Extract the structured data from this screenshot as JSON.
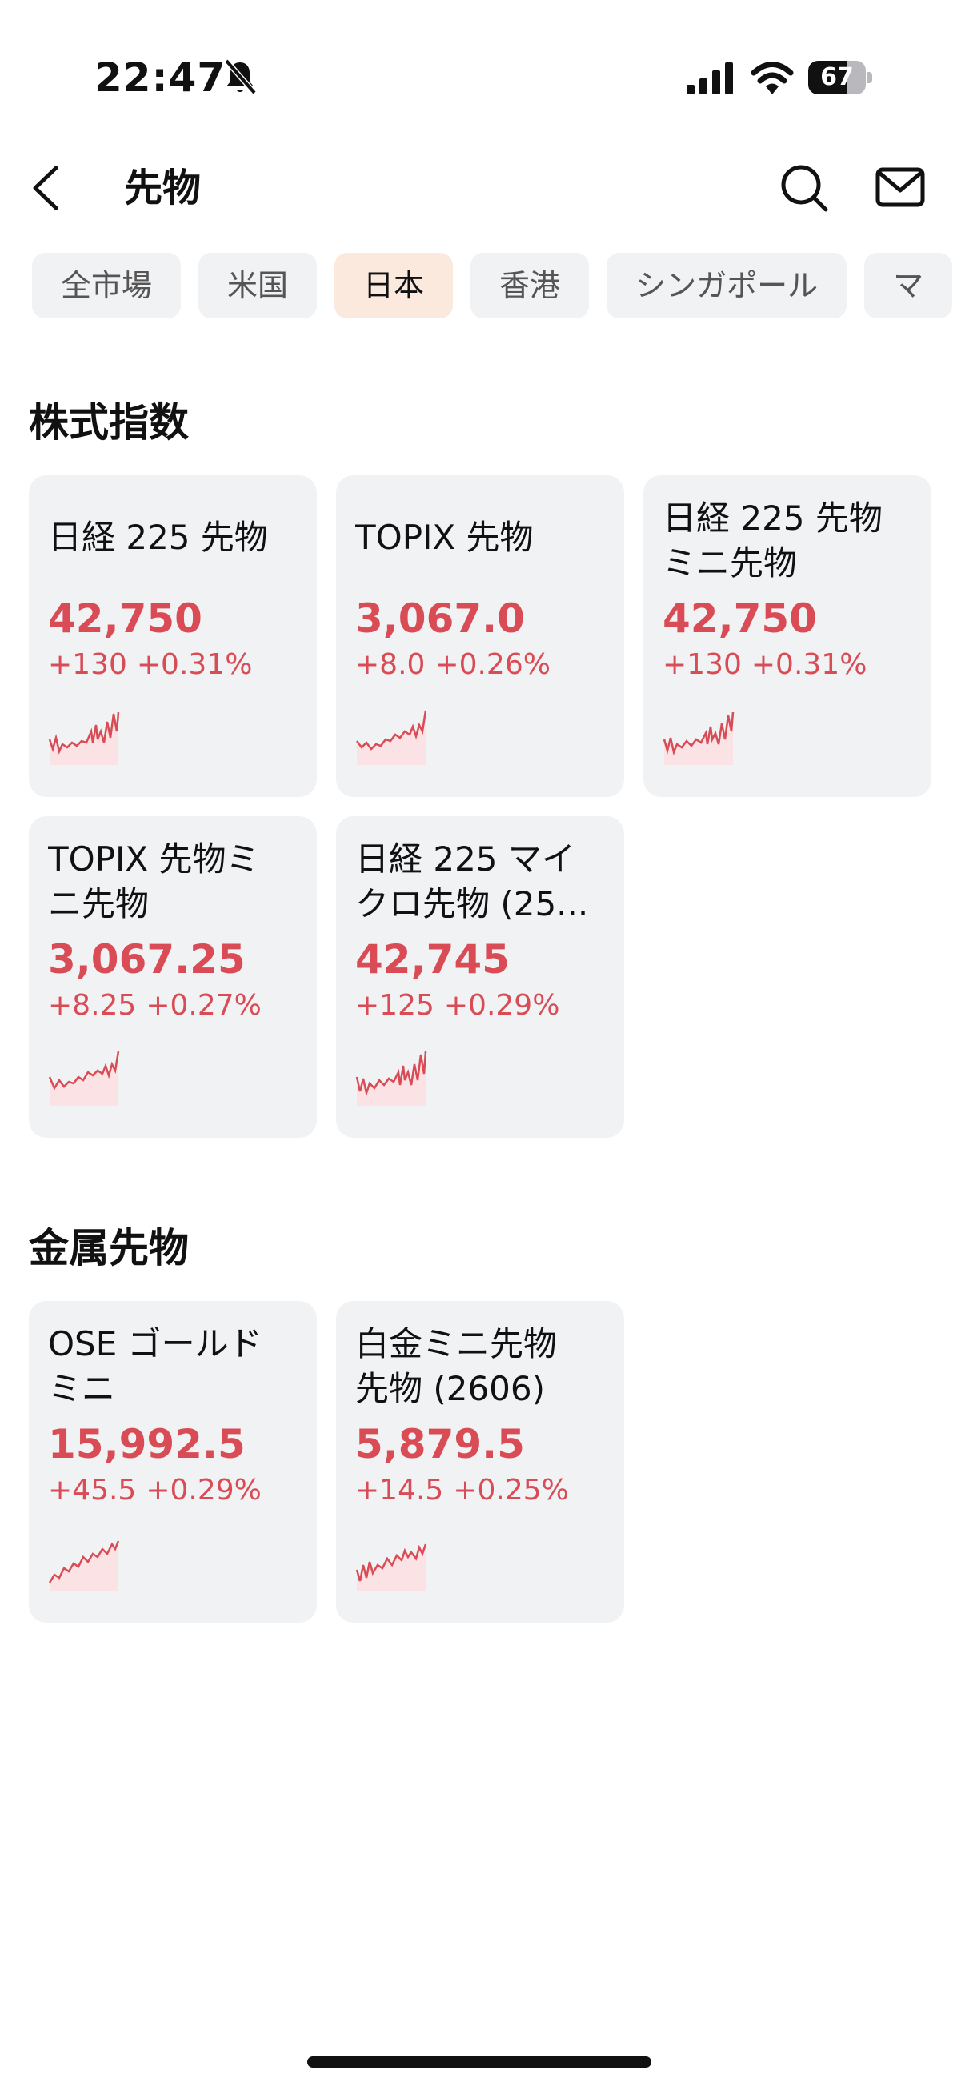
{
  "status": {
    "time": "22:47",
    "battery": "67",
    "battery_level": 0.67
  },
  "header": {
    "title": "先物"
  },
  "tabs": [
    {
      "label": "全市場",
      "active": false
    },
    {
      "label": "米国",
      "active": false
    },
    {
      "label": "日本",
      "active": true
    },
    {
      "label": "香港",
      "active": false
    },
    {
      "label": "シンガポール",
      "active": false
    },
    {
      "label": "マ",
      "active": false
    }
  ],
  "colors": {
    "up": "#d94b55",
    "active_tab_bg": "#fbe9de",
    "card_bg": "#f1f2f4"
  },
  "sections": [
    {
      "title": "株式指数",
      "cards": [
        {
          "line1": "日経 225 先物",
          "line2": "",
          "price": "42,750",
          "change": "+130",
          "pct": "+0.31%"
        },
        {
          "line1": "TOPIX 先物",
          "line2": "",
          "price": "3,067.0",
          "change": "+8.0",
          "pct": "+0.26%"
        },
        {
          "line1": "日経 225 先物",
          "line2": "ミニ先物",
          "price": "42,750",
          "change": "+130",
          "pct": "+0.31%"
        },
        {
          "line1": "TOPIX 先物ミ",
          "line2": "ニ先物",
          "price": "3,067.25",
          "change": "+8.25",
          "pct": "+0.27%"
        },
        {
          "line1": "日経 225 マイ",
          "line2": "クロ先物 (25...",
          "price": "42,745",
          "change": "+125",
          "pct": "+0.29%"
        }
      ]
    },
    {
      "title": "金属先物",
      "cards": [
        {
          "line1": "OSE ゴールド",
          "line2": "ミニ",
          "price": "15,992.5",
          "change": "+45.5",
          "pct": "+0.29%"
        },
        {
          "line1": "白金ミニ先物",
          "line2": "先物 (2606)",
          "price": "5,879.5",
          "change": "+14.5",
          "pct": "+0.25%"
        }
      ]
    }
  ]
}
